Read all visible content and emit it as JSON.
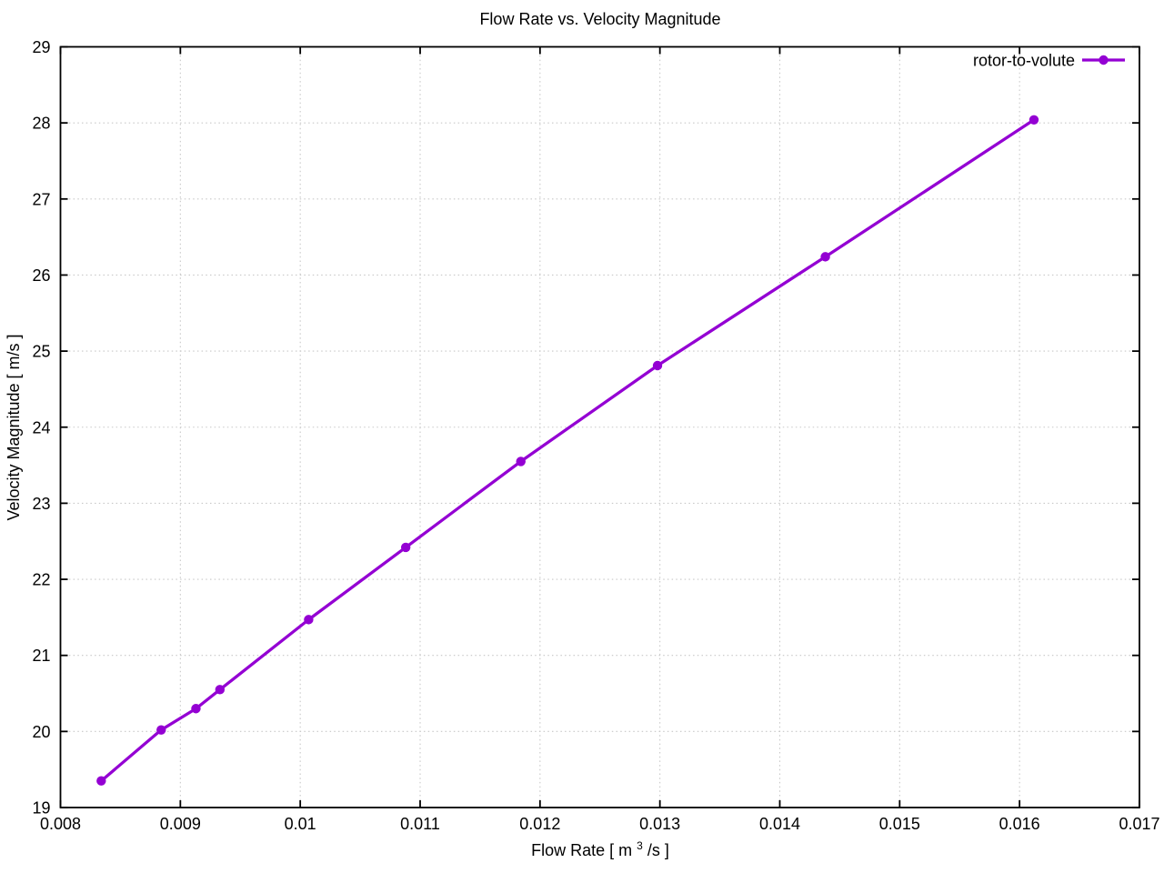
{
  "chart_data": {
    "type": "line",
    "title": "Flow Rate vs. Velocity Magnitude",
    "xlabel_parts": {
      "prefix": "Flow Rate [ m",
      "superscript": "3",
      "suffix": "/s ]"
    },
    "ylabel": "Velocity Magnitude [ m/s ]",
    "xlim": [
      0.008,
      0.017
    ],
    "ylim": [
      19,
      29
    ],
    "grid": "dotted-major",
    "legend_position": "top-right-inside",
    "xticks": [
      {
        "value": 0.008,
        "label": "0.008"
      },
      {
        "value": 0.009,
        "label": "0.009"
      },
      {
        "value": 0.01,
        "label": "0.01"
      },
      {
        "value": 0.011,
        "label": "0.011"
      },
      {
        "value": 0.012,
        "label": "0.012"
      },
      {
        "value": 0.013,
        "label": "0.013"
      },
      {
        "value": 0.014,
        "label": "0.014"
      },
      {
        "value": 0.015,
        "label": "0.015"
      },
      {
        "value": 0.016,
        "label": "0.016"
      },
      {
        "value": 0.017,
        "label": "0.017"
      }
    ],
    "yticks": [
      {
        "value": 19,
        "label": "19"
      },
      {
        "value": 20,
        "label": "20"
      },
      {
        "value": 21,
        "label": "21"
      },
      {
        "value": 22,
        "label": "22"
      },
      {
        "value": 23,
        "label": "23"
      },
      {
        "value": 24,
        "label": "24"
      },
      {
        "value": 25,
        "label": "25"
      },
      {
        "value": 26,
        "label": "26"
      },
      {
        "value": 27,
        "label": "27"
      },
      {
        "value": 28,
        "label": "28"
      },
      {
        "value": 29,
        "label": "29"
      }
    ],
    "series": [
      {
        "name": "rotor-to-volute",
        "color": "#9400d3",
        "marker": "filled-circle",
        "points": [
          [
            0.00834,
            19.35
          ],
          [
            0.00884,
            20.02
          ],
          [
            0.00913,
            20.3
          ],
          [
            0.00933,
            20.55
          ],
          [
            0.01007,
            21.47
          ],
          [
            0.01088,
            22.42
          ],
          [
            0.01184,
            23.55
          ],
          [
            0.01298,
            24.81
          ],
          [
            0.01438,
            26.24
          ],
          [
            0.01612,
            28.04
          ]
        ]
      }
    ],
    "colors": {
      "grid": "#c8c8c8",
      "border": "#000000",
      "text": "#000000",
      "background": "#ffffff"
    }
  }
}
